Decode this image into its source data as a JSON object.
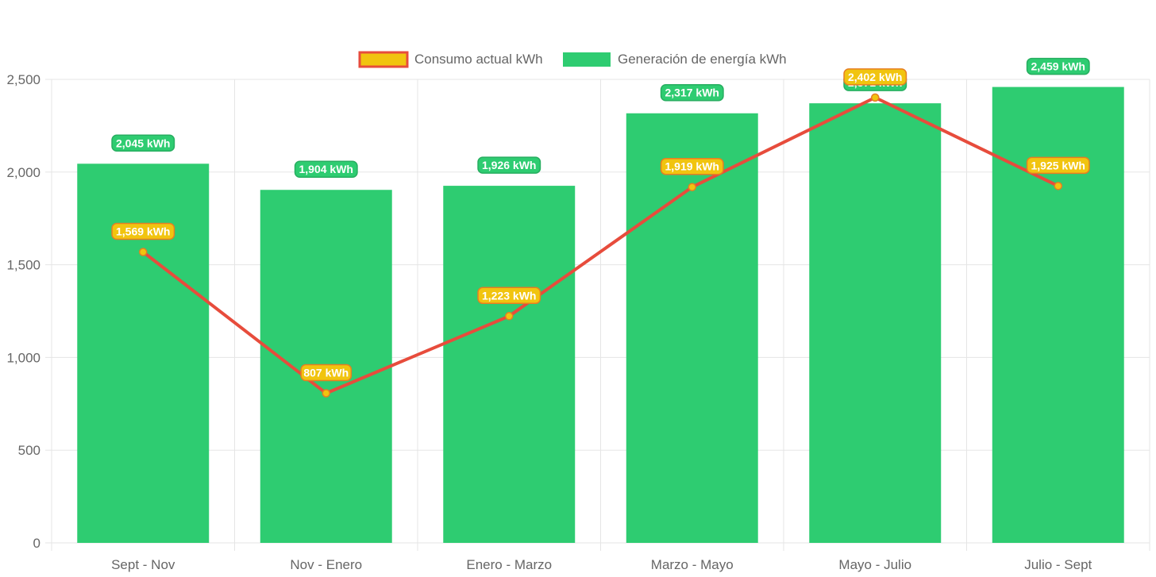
{
  "chart_data": {
    "type": "bar",
    "categories": [
      "Sept - Nov",
      "Nov - Enero",
      "Enero - Marzo",
      "Marzo - Mayo",
      "Mayo - Julio",
      "Julio - Sept"
    ],
    "series": [
      {
        "name": "Consumo actual kWh",
        "type": "line",
        "values": [
          1569,
          807,
          1223,
          1919,
          2402,
          1925
        ],
        "labels": [
          "1,569 kWh",
          "807 kWh",
          "1,223 kWh",
          "1,919 kWh",
          "2,402 kWh",
          "1,925 kWh"
        ],
        "line_color": "#e74c3c",
        "point_color": "#f1c40f"
      },
      {
        "name": "Generación de energía kWh",
        "type": "bar",
        "values": [
          2045,
          1904,
          1926,
          2317,
          2371,
          2459
        ],
        "labels": [
          "2,045 kWh",
          "1,904 kWh",
          "1,926 kWh",
          "2,317 kWh",
          "2,371 kWh",
          "2,459 kWh"
        ],
        "color": "#2ecc71"
      }
    ],
    "y_ticks": [
      "0",
      "500",
      "1,000",
      "1,500",
      "2,000",
      "2,500"
    ],
    "ylim": [
      0,
      2500
    ],
    "grid": true,
    "legend": "top-center",
    "title": "",
    "xlabel": "",
    "ylabel": ""
  },
  "colors": {
    "grid": "#e5e5e5",
    "axis_text": "#666666",
    "consumo_label_bg": "#f1c40f",
    "consumo_label_border": "#e67e22",
    "generacion_label_bg": "#2ecc71",
    "generacion_label_border": "#27ae60"
  }
}
